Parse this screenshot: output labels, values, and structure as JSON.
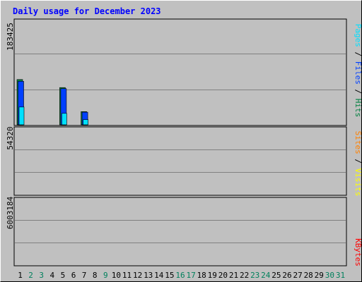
{
  "chart_data": {
    "type": "bar",
    "title": "Daily usage for December 2023",
    "categories": [
      "1",
      "2",
      "3",
      "4",
      "5",
      "6",
      "7",
      "8",
      "9",
      "10",
      "11",
      "12",
      "13",
      "14",
      "15",
      "16",
      "17",
      "18",
      "19",
      "20",
      "21",
      "22",
      "23",
      "24",
      "25",
      "26",
      "27",
      "28",
      "29",
      "30",
      "31"
    ],
    "weekend_days": [
      "2",
      "3",
      "9",
      "16",
      "17",
      "23",
      "24",
      "30",
      "31"
    ],
    "panels": [
      {
        "scale_label": "183425",
        "ylim": [
          0,
          183425
        ],
        "series": [
          {
            "name": "Hits",
            "color": "#008040",
            "values": [
              79000,
              0,
              0,
              0,
              65000,
              0,
              23000,
              0,
              0,
              0,
              0,
              0,
              0,
              0,
              0,
              0,
              0,
              0,
              0,
              0,
              0,
              0,
              0,
              0,
              0,
              0,
              0,
              0,
              0,
              0,
              0
            ]
          },
          {
            "name": "Files",
            "color": "#0040ff",
            "values": [
              76000,
              0,
              0,
              0,
              63000,
              0,
              22000,
              0,
              0,
              0,
              0,
              0,
              0,
              0,
              0,
              0,
              0,
              0,
              0,
              0,
              0,
              0,
              0,
              0,
              0,
              0,
              0,
              0,
              0,
              0,
              0
            ]
          },
          {
            "name": "Pages",
            "color": "#00e0ff",
            "values": [
              31000,
              0,
              0,
              0,
              20000,
              0,
              9000,
              0,
              0,
              0,
              0,
              0,
              0,
              0,
              0,
              0,
              0,
              0,
              0,
              0,
              0,
              0,
              0,
              0,
              0,
              0,
              0,
              0,
              0,
              0,
              0
            ]
          }
        ]
      },
      {
        "scale_label": "54320",
        "ylim": [
          0,
          54320
        ],
        "series": [
          {
            "name": "Visits",
            "color": "#ffff00",
            "values": [
              0,
              0,
              0,
              0,
              0,
              0,
              0,
              0,
              0,
              0,
              0,
              0,
              0,
              0,
              0,
              0,
              0,
              0,
              0,
              0,
              0,
              0,
              0,
              0,
              0,
              0,
              0,
              0,
              0,
              0,
              0
            ]
          },
          {
            "name": "Sites",
            "color": "#ff8000",
            "values": [
              0,
              0,
              0,
              0,
              0,
              0,
              0,
              0,
              0,
              0,
              0,
              0,
              0,
              0,
              0,
              0,
              0,
              0,
              0,
              0,
              0,
              0,
              0,
              0,
              0,
              0,
              0,
              0,
              0,
              0,
              0
            ]
          }
        ]
      },
      {
        "scale_label": "6003184",
        "ylim": [
          0,
          6003184
        ],
        "series": [
          {
            "name": "KBytes",
            "color": "#ff0000",
            "values": [
              0,
              0,
              0,
              0,
              0,
              0,
              0,
              0,
              0,
              0,
              0,
              0,
              0,
              0,
              0,
              0,
              0,
              0,
              0,
              0,
              0,
              0,
              0,
              0,
              0,
              0,
              0,
              0,
              0,
              0,
              0
            ]
          }
        ]
      }
    ],
    "colors": {
      "background": "#c0c0c0",
      "grid": "#808080",
      "title": "#0000ff",
      "weekday_label": "#000000",
      "weekend_label": "#00805c"
    }
  }
}
